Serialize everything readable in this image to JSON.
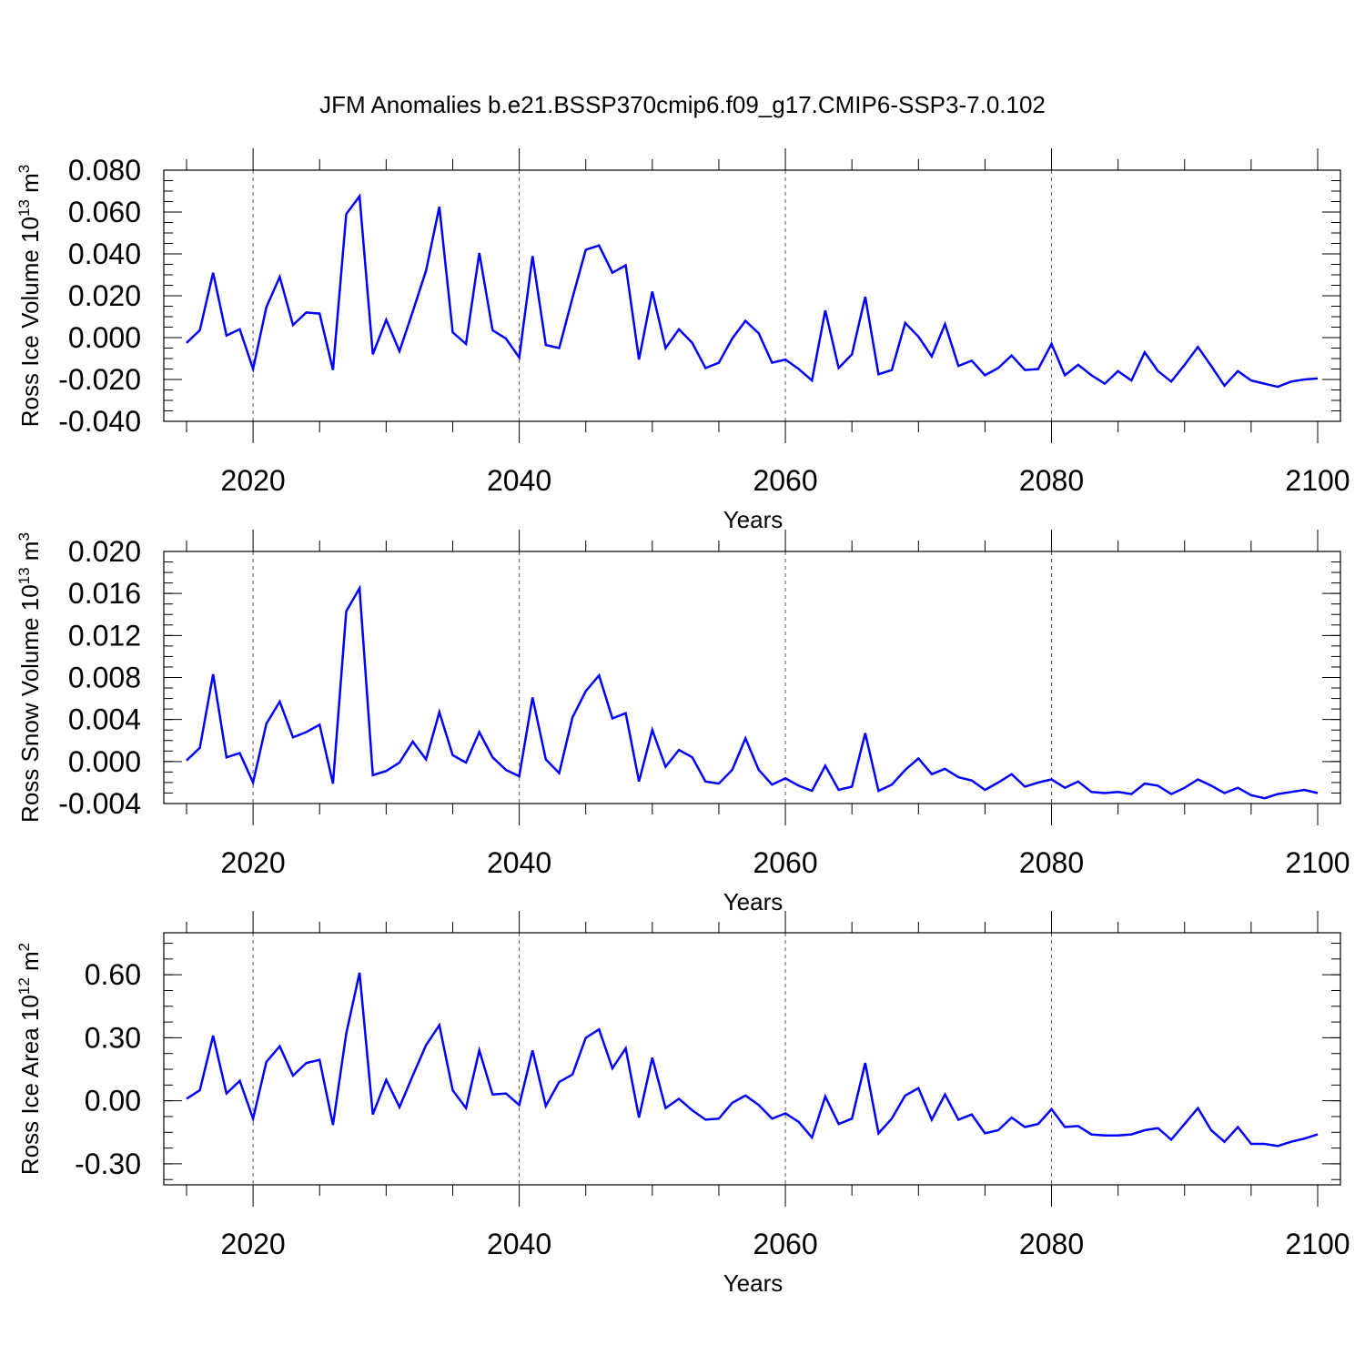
{
  "title": "JFM Anomalies b.e21.BSSP370cmip6.f09_g17.CMIP6-SSP3-7.0.102",
  "line_color": "#0000ff",
  "chart_data": [
    {
      "type": "line",
      "ylabel_main": "Ross Ice Volume 10",
      "ylabel_exp": "13",
      "ylabel_unit": " m",
      "ylabel_unit_exp": "3",
      "xlabel": "Years",
      "xlim": [
        2015,
        2100
      ],
      "ylim": [
        -0.04,
        0.08
      ],
      "yticks": [
        -0.04,
        -0.02,
        0.0,
        0.02,
        0.04,
        0.06,
        0.08
      ],
      "ytick_labels": [
        "-0.040",
        "-0.020",
        "0.000",
        "0.020",
        "0.040",
        "0.060",
        "0.080"
      ],
      "xticks": [
        2020,
        2040,
        2060,
        2080,
        2100
      ],
      "xtick_labels": [
        "2020",
        "2040",
        "2060",
        "2080",
        "2100"
      ],
      "grid_x": [
        2020,
        2040,
        2060,
        2080
      ],
      "x_start": 2015,
      "values": [
        -0.0025,
        0.0035,
        0.031,
        0.001,
        0.004,
        -0.015,
        0.0145,
        0.029,
        0.006,
        0.012,
        0.0115,
        -0.0155,
        0.059,
        0.0675,
        -0.008,
        0.0085,
        -0.0065,
        0.0125,
        0.032,
        0.0625,
        0.0025,
        -0.003,
        0.0405,
        0.0035,
        -0.0005,
        -0.0095,
        0.039,
        -0.0035,
        -0.005,
        0.019,
        0.042,
        0.044,
        0.031,
        0.0345,
        -0.0105,
        0.022,
        -0.005,
        0.004,
        -0.0025,
        -0.0145,
        -0.012,
        -0.0005,
        0.008,
        0.002,
        -0.012,
        -0.0105,
        -0.015,
        -0.0205,
        0.013,
        -0.0145,
        -0.008,
        0.0195,
        -0.0175,
        -0.0155,
        0.007,
        0.0005,
        -0.009,
        0.0065,
        -0.0135,
        -0.011,
        -0.018,
        -0.0145,
        -0.0085,
        -0.0155,
        -0.015,
        -0.003,
        -0.018,
        -0.013,
        -0.018,
        -0.022,
        -0.016,
        -0.0205,
        -0.007,
        -0.016,
        -0.021,
        -0.013,
        -0.0045,
        -0.0135,
        -0.023,
        -0.016,
        -0.0205,
        -0.022,
        -0.0235,
        -0.021,
        -0.02,
        -0.0195
      ]
    },
    {
      "type": "line",
      "ylabel_main": "Ross Snow Volume 10",
      "ylabel_exp": "13",
      "ylabel_unit": " m",
      "ylabel_unit_exp": "3",
      "xlabel": "Years",
      "xlim": [
        2015,
        2100
      ],
      "ylim": [
        -0.004,
        0.02
      ],
      "yticks": [
        -0.004,
        0.0,
        0.004,
        0.008,
        0.012,
        0.016,
        0.02
      ],
      "ytick_labels": [
        "-0.004",
        "0.000",
        "0.004",
        "0.008",
        "0.012",
        "0.016",
        "0.020"
      ],
      "xticks": [
        2020,
        2040,
        2060,
        2080,
        2100
      ],
      "xtick_labels": [
        "2020",
        "2040",
        "2060",
        "2080",
        "2100"
      ],
      "grid_x": [
        2020,
        2040,
        2060,
        2080
      ],
      "x_start": 2015,
      "values": [
        0.0001,
        0.0013,
        0.0083,
        0.0004,
        0.0008,
        -0.002,
        0.0036,
        0.0057,
        0.0023,
        0.0028,
        0.0035,
        -0.0021,
        0.0143,
        0.0165,
        -0.0013,
        -0.0009,
        -0.0001,
        0.0019,
        0.0002,
        0.0047,
        0.0006,
        -0.0001,
        0.0028,
        0.0004,
        -0.0008,
        -0.0014,
        0.0061,
        0.0002,
        -0.0011,
        0.0042,
        0.0067,
        0.0082,
        0.0041,
        0.0046,
        -0.0019,
        0.003,
        -0.0005,
        0.0011,
        0.0004,
        -0.0019,
        -0.0021,
        -0.0008,
        0.0022,
        -0.0008,
        -0.0022,
        -0.0016,
        -0.0023,
        -0.0028,
        -0.0004,
        -0.0027,
        -0.0024,
        0.0027,
        -0.0028,
        -0.0022,
        -0.0008,
        0.0003,
        -0.0012,
        -0.0007,
        -0.0015,
        -0.0018,
        -0.0027,
        -0.002,
        -0.0012,
        -0.0024,
        -0.002,
        -0.0017,
        -0.0025,
        -0.0019,
        -0.0029,
        -0.003,
        -0.0029,
        -0.0031,
        -0.0021,
        -0.0023,
        -0.0031,
        -0.0025,
        -0.0017,
        -0.0023,
        -0.003,
        -0.0025,
        -0.0032,
        -0.0035,
        -0.0031,
        -0.0029,
        -0.0027,
        -0.003
      ]
    },
    {
      "type": "line",
      "ylabel_main": "Ross Ice Area 10",
      "ylabel_exp": "12",
      "ylabel_unit": " m",
      "ylabel_unit_exp": "2",
      "xlabel": "Years",
      "xlim": [
        2015,
        2100
      ],
      "ylim": [
        -0.4,
        0.8
      ],
      "yticks": [
        -0.3,
        0.0,
        0.3,
        0.6
      ],
      "ytick_labels": [
        "-0.30",
        "0.00",
        "0.30",
        "0.60"
      ],
      "xticks": [
        2020,
        2040,
        2060,
        2080,
        2100
      ],
      "xtick_labels": [
        "2020",
        "2040",
        "2060",
        "2080",
        "2100"
      ],
      "grid_x": [
        2020,
        2040,
        2060,
        2080
      ],
      "x_start": 2015,
      "values": [
        0.01,
        0.05,
        0.31,
        0.035,
        0.095,
        -0.085,
        0.185,
        0.26,
        0.12,
        0.18,
        0.195,
        -0.115,
        0.32,
        0.61,
        -0.065,
        0.1,
        -0.03,
        0.12,
        0.265,
        0.36,
        0.05,
        -0.035,
        0.24,
        0.03,
        0.035,
        -0.02,
        0.24,
        -0.025,
        0.09,
        0.125,
        0.3,
        0.34,
        0.155,
        0.25,
        -0.08,
        0.205,
        -0.035,
        0.01,
        -0.045,
        -0.09,
        -0.085,
        -0.01,
        0.025,
        -0.02,
        -0.085,
        -0.06,
        -0.1,
        -0.175,
        0.02,
        -0.11,
        -0.085,
        0.18,
        -0.155,
        -0.085,
        0.025,
        0.06,
        -0.09,
        0.03,
        -0.09,
        -0.065,
        -0.155,
        -0.14,
        -0.08,
        -0.125,
        -0.11,
        -0.04,
        -0.125,
        -0.12,
        -0.16,
        -0.165,
        -0.165,
        -0.16,
        -0.14,
        -0.13,
        -0.185,
        -0.11,
        -0.035,
        -0.14,
        -0.195,
        -0.125,
        -0.205,
        -0.205,
        -0.215,
        -0.195,
        -0.18,
        -0.16
      ]
    }
  ]
}
